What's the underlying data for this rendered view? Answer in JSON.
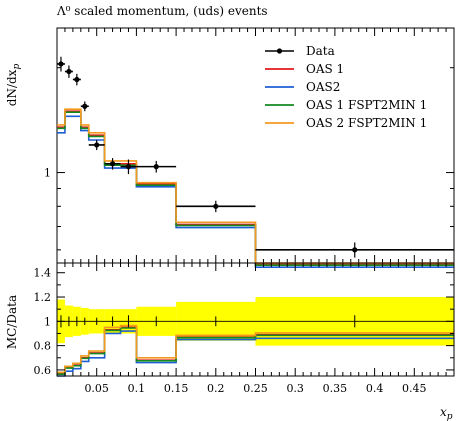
{
  "chart_data": {
    "type": "line",
    "title": "Λ⁰ scaled momentum, (uds) events",
    "xlabel": "x_p",
    "ylabel": "dN/dx_p",
    "ratio_ylabel": "MC/Data",
    "xlim": [
      0.0,
      0.5
    ],
    "x_ticks": [
      {
        "v": 0.05,
        "t": "0.05"
      },
      {
        "v": 0.1,
        "t": "0.1"
      },
      {
        "v": 0.15,
        "t": "0.15"
      },
      {
        "v": 0.2,
        "t": "0.2"
      },
      {
        "v": 0.25,
        "t": "0.25"
      },
      {
        "v": 0.3,
        "t": "0.3"
      },
      {
        "v": 0.35,
        "t": "0.35"
      },
      {
        "v": 0.4,
        "t": "0.4"
      },
      {
        "v": 0.45,
        "t": "0.45"
      }
    ],
    "main_yscale": "log",
    "main_ylim": [
      0.55,
      2.6
    ],
    "main_y_ticks": [
      {
        "v": 1,
        "t": "1"
      }
    ],
    "ratio_ylim": [
      0.55,
      1.48
    ],
    "ratio_y_ticks": [
      {
        "v": 0.6,
        "t": "0.6"
      },
      {
        "v": 0.8,
        "t": "0.8"
      },
      {
        "v": 1.0,
        "t": "1"
      },
      {
        "v": 1.2,
        "t": "1.2"
      },
      {
        "v": 1.4,
        "t": "1.4"
      }
    ],
    "bin_edges": [
      0.0,
      0.01,
      0.02,
      0.03,
      0.04,
      0.06,
      0.08,
      0.1,
      0.15,
      0.25,
      0.5
    ],
    "data": {
      "name": "Data",
      "color": "#000000",
      "x": [
        0.005,
        0.015,
        0.025,
        0.035,
        0.05,
        0.07,
        0.09,
        0.125,
        0.2,
        0.375
      ],
      "xerr_low": [
        0.005,
        0.005,
        0.005,
        0.005,
        0.01,
        0.01,
        0.01,
        0.025,
        0.05,
        0.125
      ],
      "xerr_high": [
        0.005,
        0.005,
        0.005,
        0.005,
        0.01,
        0.01,
        0.01,
        0.025,
        0.05,
        0.125
      ],
      "y": [
        2.05,
        1.95,
        1.85,
        1.55,
        1.2,
        1.06,
        1.04,
        1.04,
        0.8,
        0.6
      ],
      "yerr": [
        0.1,
        0.08,
        0.07,
        0.05,
        0.04,
        0.04,
        0.05,
        0.04,
        0.03,
        0.03
      ]
    },
    "series": [
      {
        "name": "OAS 1",
        "color": "#e41a1c",
        "values": [
          1.35,
          1.5,
          1.5,
          1.35,
          1.28,
          1.06,
          1.06,
          0.925,
          0.71,
          0.545
        ],
        "ratio": [
          0.57,
          0.62,
          0.64,
          0.7,
          0.74,
          0.93,
          0.95,
          0.68,
          0.87,
          0.89
        ]
      },
      {
        "name": "OAS2",
        "color": "#1f5fd6",
        "values": [
          1.3,
          1.45,
          1.45,
          1.32,
          1.24,
          1.03,
          1.03,
          0.91,
          0.695,
          0.535
        ],
        "ratio": [
          0.55,
          0.59,
          0.61,
          0.67,
          0.7,
          0.9,
          0.92,
          0.66,
          0.85,
          0.86
        ]
      },
      {
        "name": "OAS 1 FSPT2MIN 1",
        "color": "#138a1f",
        "values": [
          1.34,
          1.49,
          1.49,
          1.34,
          1.27,
          1.05,
          1.05,
          0.92,
          0.705,
          0.542
        ],
        "ratio": [
          0.565,
          0.615,
          0.635,
          0.695,
          0.735,
          0.925,
          0.945,
          0.675,
          0.865,
          0.885
        ]
      },
      {
        "name": "OAS 2 FSPT2MIN 1",
        "color": "#f39a1e",
        "values": [
          1.37,
          1.52,
          1.52,
          1.37,
          1.3,
          1.08,
          1.08,
          0.935,
          0.72,
          0.55
        ],
        "ratio": [
          0.58,
          0.63,
          0.655,
          0.715,
          0.755,
          0.95,
          0.965,
          0.7,
          0.885,
          0.905
        ]
      }
    ],
    "ratio_band": {
      "color": "#ffff00",
      "low": [
        0.82,
        0.87,
        0.88,
        0.89,
        0.9,
        0.9,
        0.9,
        0.88,
        0.84,
        0.8
      ],
      "high": [
        1.18,
        1.13,
        1.12,
        1.11,
        1.1,
        1.1,
        1.1,
        1.12,
        1.16,
        1.2
      ]
    },
    "ratio_data_err": [
      0.05,
      0.04,
      0.04,
      0.03,
      0.03,
      0.04,
      0.05,
      0.04,
      0.04,
      0.05
    ],
    "legend_position": "top-right"
  }
}
